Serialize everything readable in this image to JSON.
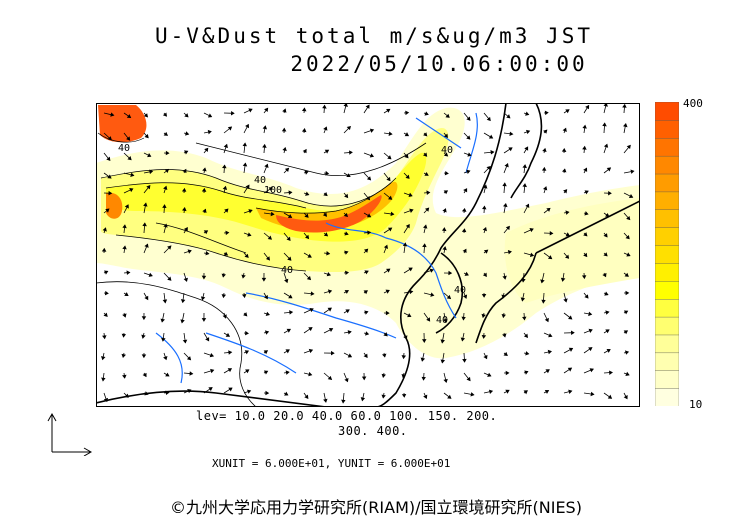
{
  "title": {
    "line1": "U-V&Dust total m/s&ug/m3 JST",
    "line2": "2022/05/10.06:00:00"
  },
  "colorbar": {
    "max_label": "400",
    "min_label": "10",
    "colors": [
      "#ffffe0",
      "#ffffc8",
      "#ffffb0",
      "#ffff99",
      "#ffff70",
      "#ffff40",
      "#ffff00",
      "#fff000",
      "#ffe000",
      "#ffd000",
      "#ffc000",
      "#ffaf00",
      "#ff9c00",
      "#ff8800",
      "#ff7400",
      "#ff6000",
      "#ff4c00"
    ]
  },
  "legend": {
    "levels_line1": "lev= 10.0 20.0 40.0 60.0 100. 150. 200.",
    "levels_line2": "300. 400.",
    "units": "XUNIT = 6.000E+01, YUNIT = 6.000E+01"
  },
  "contour_labels": [
    "40",
    "40",
    "40",
    "100",
    "40",
    "40",
    "40"
  ],
  "credit": "©九州大学応用力学研究所(RIAM)/国立環境研究所(NIES)",
  "colors": {
    "coast": "#000000",
    "river": "#1a6fff",
    "dust_light": "#ffffc0",
    "dust_mid": "#ffff40",
    "dust_high": "#ffb000",
    "dust_max": "#ff5a10"
  }
}
